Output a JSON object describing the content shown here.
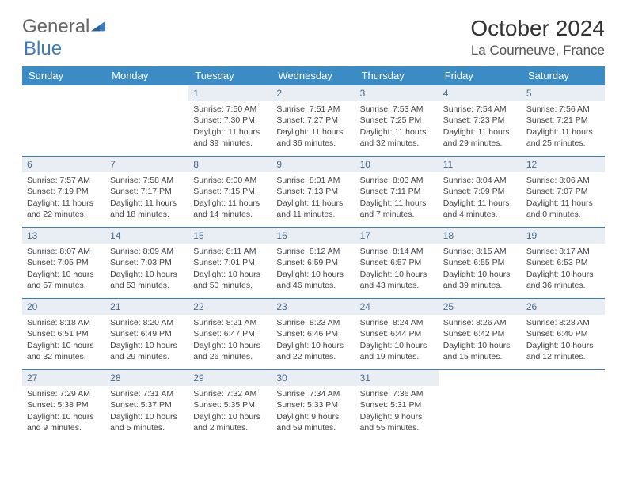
{
  "logo": {
    "general": "General",
    "blue": "Blue"
  },
  "title": "October 2024",
  "location": "La Courneuve, France",
  "colors": {
    "header_bg": "#3b8cc4",
    "header_text": "#ffffff",
    "daynum_bg": "#e8eef3",
    "daynum_text": "#4a6a8a",
    "rule": "#3b7bbf",
    "brand_gray": "#666666",
    "brand_blue": "#3b7bbf"
  },
  "day_headers": [
    "Sunday",
    "Monday",
    "Tuesday",
    "Wednesday",
    "Thursday",
    "Friday",
    "Saturday"
  ],
  "weeks": [
    [
      {
        "num": "",
        "lines": []
      },
      {
        "num": "",
        "lines": []
      },
      {
        "num": "1",
        "lines": [
          "Sunrise: 7:50 AM",
          "Sunset: 7:30 PM",
          "Daylight: 11 hours and 39 minutes."
        ]
      },
      {
        "num": "2",
        "lines": [
          "Sunrise: 7:51 AM",
          "Sunset: 7:27 PM",
          "Daylight: 11 hours and 36 minutes."
        ]
      },
      {
        "num": "3",
        "lines": [
          "Sunrise: 7:53 AM",
          "Sunset: 7:25 PM",
          "Daylight: 11 hours and 32 minutes."
        ]
      },
      {
        "num": "4",
        "lines": [
          "Sunrise: 7:54 AM",
          "Sunset: 7:23 PM",
          "Daylight: 11 hours and 29 minutes."
        ]
      },
      {
        "num": "5",
        "lines": [
          "Sunrise: 7:56 AM",
          "Sunset: 7:21 PM",
          "Daylight: 11 hours and 25 minutes."
        ]
      }
    ],
    [
      {
        "num": "6",
        "lines": [
          "Sunrise: 7:57 AM",
          "Sunset: 7:19 PM",
          "Daylight: 11 hours and 22 minutes."
        ]
      },
      {
        "num": "7",
        "lines": [
          "Sunrise: 7:58 AM",
          "Sunset: 7:17 PM",
          "Daylight: 11 hours and 18 minutes."
        ]
      },
      {
        "num": "8",
        "lines": [
          "Sunrise: 8:00 AM",
          "Sunset: 7:15 PM",
          "Daylight: 11 hours and 14 minutes."
        ]
      },
      {
        "num": "9",
        "lines": [
          "Sunrise: 8:01 AM",
          "Sunset: 7:13 PM",
          "Daylight: 11 hours and 11 minutes."
        ]
      },
      {
        "num": "10",
        "lines": [
          "Sunrise: 8:03 AM",
          "Sunset: 7:11 PM",
          "Daylight: 11 hours and 7 minutes."
        ]
      },
      {
        "num": "11",
        "lines": [
          "Sunrise: 8:04 AM",
          "Sunset: 7:09 PM",
          "Daylight: 11 hours and 4 minutes."
        ]
      },
      {
        "num": "12",
        "lines": [
          "Sunrise: 8:06 AM",
          "Sunset: 7:07 PM",
          "Daylight: 11 hours and 0 minutes."
        ]
      }
    ],
    [
      {
        "num": "13",
        "lines": [
          "Sunrise: 8:07 AM",
          "Sunset: 7:05 PM",
          "Daylight: 10 hours and 57 minutes."
        ]
      },
      {
        "num": "14",
        "lines": [
          "Sunrise: 8:09 AM",
          "Sunset: 7:03 PM",
          "Daylight: 10 hours and 53 minutes."
        ]
      },
      {
        "num": "15",
        "lines": [
          "Sunrise: 8:11 AM",
          "Sunset: 7:01 PM",
          "Daylight: 10 hours and 50 minutes."
        ]
      },
      {
        "num": "16",
        "lines": [
          "Sunrise: 8:12 AM",
          "Sunset: 6:59 PM",
          "Daylight: 10 hours and 46 minutes."
        ]
      },
      {
        "num": "17",
        "lines": [
          "Sunrise: 8:14 AM",
          "Sunset: 6:57 PM",
          "Daylight: 10 hours and 43 minutes."
        ]
      },
      {
        "num": "18",
        "lines": [
          "Sunrise: 8:15 AM",
          "Sunset: 6:55 PM",
          "Daylight: 10 hours and 39 minutes."
        ]
      },
      {
        "num": "19",
        "lines": [
          "Sunrise: 8:17 AM",
          "Sunset: 6:53 PM",
          "Daylight: 10 hours and 36 minutes."
        ]
      }
    ],
    [
      {
        "num": "20",
        "lines": [
          "Sunrise: 8:18 AM",
          "Sunset: 6:51 PM",
          "Daylight: 10 hours and 32 minutes."
        ]
      },
      {
        "num": "21",
        "lines": [
          "Sunrise: 8:20 AM",
          "Sunset: 6:49 PM",
          "Daylight: 10 hours and 29 minutes."
        ]
      },
      {
        "num": "22",
        "lines": [
          "Sunrise: 8:21 AM",
          "Sunset: 6:47 PM",
          "Daylight: 10 hours and 26 minutes."
        ]
      },
      {
        "num": "23",
        "lines": [
          "Sunrise: 8:23 AM",
          "Sunset: 6:46 PM",
          "Daylight: 10 hours and 22 minutes."
        ]
      },
      {
        "num": "24",
        "lines": [
          "Sunrise: 8:24 AM",
          "Sunset: 6:44 PM",
          "Daylight: 10 hours and 19 minutes."
        ]
      },
      {
        "num": "25",
        "lines": [
          "Sunrise: 8:26 AM",
          "Sunset: 6:42 PM",
          "Daylight: 10 hours and 15 minutes."
        ]
      },
      {
        "num": "26",
        "lines": [
          "Sunrise: 8:28 AM",
          "Sunset: 6:40 PM",
          "Daylight: 10 hours and 12 minutes."
        ]
      }
    ],
    [
      {
        "num": "27",
        "lines": [
          "Sunrise: 7:29 AM",
          "Sunset: 5:38 PM",
          "Daylight: 10 hours and 9 minutes."
        ]
      },
      {
        "num": "28",
        "lines": [
          "Sunrise: 7:31 AM",
          "Sunset: 5:37 PM",
          "Daylight: 10 hours and 5 minutes."
        ]
      },
      {
        "num": "29",
        "lines": [
          "Sunrise: 7:32 AM",
          "Sunset: 5:35 PM",
          "Daylight: 10 hours and 2 minutes."
        ]
      },
      {
        "num": "30",
        "lines": [
          "Sunrise: 7:34 AM",
          "Sunset: 5:33 PM",
          "Daylight: 9 hours and 59 minutes."
        ]
      },
      {
        "num": "31",
        "lines": [
          "Sunrise: 7:36 AM",
          "Sunset: 5:31 PM",
          "Daylight: 9 hours and 55 minutes."
        ]
      },
      {
        "num": "",
        "lines": []
      },
      {
        "num": "",
        "lines": []
      }
    ]
  ]
}
